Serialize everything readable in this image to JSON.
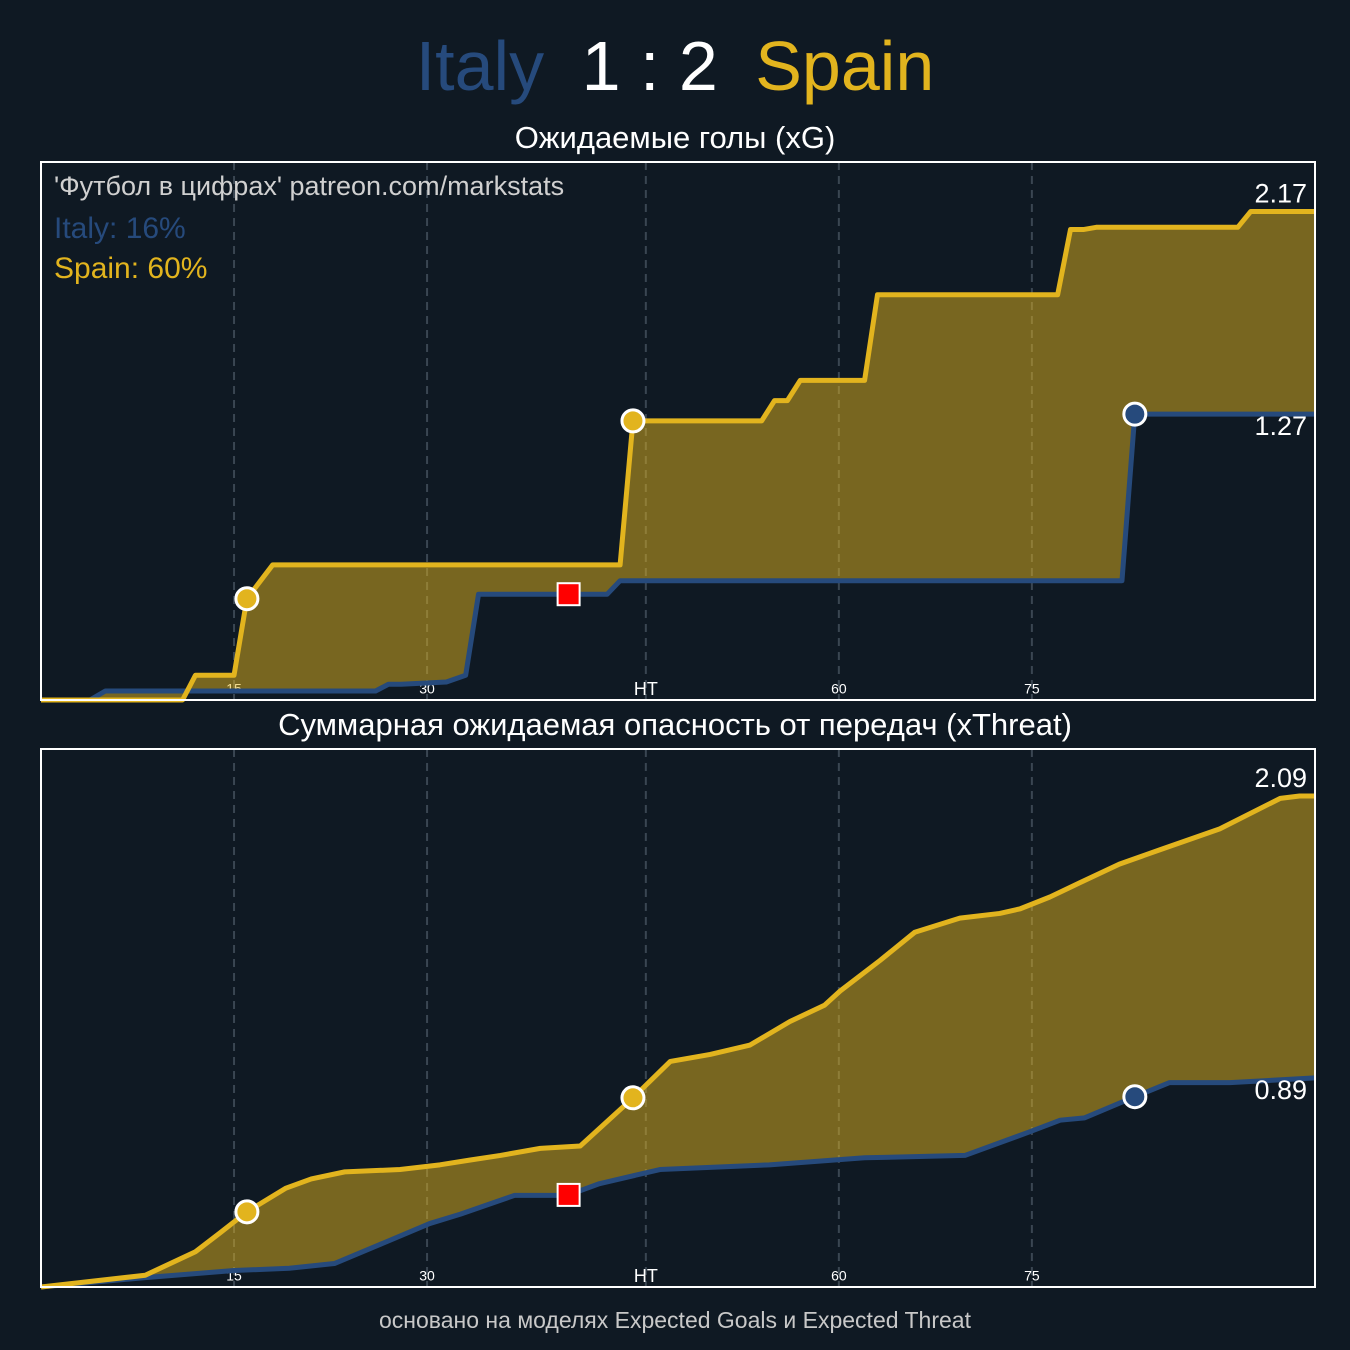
{
  "header": {
    "home": "Italy",
    "score": "1 : 2",
    "away": "Spain"
  },
  "credit": "'Футбол в цифрах' patreon.com/markstats",
  "chart_data": [
    {
      "type": "line",
      "title": "Ожидаемые голы (xG)",
      "xlim": [
        0,
        99
      ],
      "ylim": [
        0,
        2.39
      ],
      "grid": true,
      "fill_between": true,
      "xticks": [
        15,
        30,
        {
          "value": 47,
          "label": "HT"
        },
        {
          "value": 62,
          "label": "60"
        },
        {
          "value": 77,
          "label": "75"
        }
      ],
      "series": [
        {
          "name": "Italy",
          "color": "#264a7c",
          "probability_label": "Italy: 16%",
          "goals": [
            85
          ],
          "red_cards": [
            41
          ],
          "x": [
            0,
            3.8,
            5,
            26,
            27,
            28,
            31.5,
            33,
            34,
            44,
            45,
            84,
            85,
            99
          ],
          "values": [
            0,
            0,
            0.04,
            0.04,
            0.07,
            0.07,
            0.08,
            0.11,
            0.47,
            0.47,
            0.53,
            0.53,
            1.27,
            1.27
          ]
        },
        {
          "name": "Spain",
          "color": "#e2b41e",
          "probability_label": "Spain: 60%",
          "goals": [
            16,
            46
          ],
          "red_cards": [],
          "x": [
            0,
            11,
            12,
            15,
            16,
            18,
            45,
            46,
            56,
            57,
            58,
            59,
            64,
            65,
            79,
            80,
            81,
            82,
            93,
            94,
            99
          ],
          "values": [
            0,
            0,
            0.11,
            0.11,
            0.45,
            0.6,
            0.6,
            1.24,
            1.24,
            1.33,
            1.33,
            1.42,
            1.42,
            1.8,
            1.8,
            2.09,
            2.09,
            2.1,
            2.1,
            2.17,
            2.17
          ]
        }
      ]
    },
    {
      "type": "line",
      "title": "Суммарная ожидаемая опасность от передач (xThreat)",
      "xlim": [
        0,
        99
      ],
      "ylim": [
        0,
        2.29
      ],
      "grid": true,
      "fill_between": true,
      "xticks": [
        15,
        30,
        {
          "value": 47,
          "label": "HT"
        },
        {
          "value": 62,
          "label": "60"
        },
        {
          "value": 77,
          "label": "75"
        }
      ],
      "series": [
        {
          "name": "Italy",
          "color": "#264a7c",
          "goals": [
            85
          ],
          "red_cards": [
            41
          ],
          "x": [
            0,
            8.1,
            15,
            19.3,
            22.8,
            26.3,
            30.2,
            32.6,
            36.8,
            40.9,
            43.4,
            48.1,
            56.6,
            64,
            71.8,
            76.8,
            79.2,
            81.1,
            85,
            87.7,
            92.4,
            99
          ],
          "values": [
            0,
            0.04,
            0.07,
            0.08,
            0.1,
            0.18,
            0.27,
            0.31,
            0.39,
            0.39,
            0.44,
            0.5,
            0.52,
            0.55,
            0.56,
            0.66,
            0.71,
            0.72,
            0.81,
            0.87,
            0.87,
            0.89
          ]
        },
        {
          "name": "Spain",
          "color": "#e2b41e",
          "goals": [
            16,
            46
          ],
          "red_cards": [],
          "x": [
            0,
            8.1,
            12,
            13.9,
            16,
            19,
            21,
            23.6,
            27.9,
            31,
            33.3,
            35.7,
            38.8,
            41.9,
            45.9,
            48.9,
            52,
            55.1,
            58.2,
            60.9,
            62.1,
            65.2,
            67.9,
            71.4,
            74.5,
            76.1,
            78.4,
            80.7,
            83.8,
            86.9,
            91.6,
            96.3,
            97.8,
            99
          ],
          "values": [
            0,
            0.05,
            0.15,
            0.23,
            0.32,
            0.42,
            0.46,
            0.49,
            0.5,
            0.52,
            0.54,
            0.56,
            0.59,
            0.6,
            0.8,
            0.96,
            0.99,
            1.03,
            1.13,
            1.2,
            1.26,
            1.39,
            1.51,
            1.57,
            1.59,
            1.61,
            1.66,
            1.72,
            1.8,
            1.86,
            1.95,
            2.08,
            2.09,
            2.09
          ]
        }
      ]
    }
  ],
  "footer": "основано на моделях Expected Goals и Expected Threat"
}
